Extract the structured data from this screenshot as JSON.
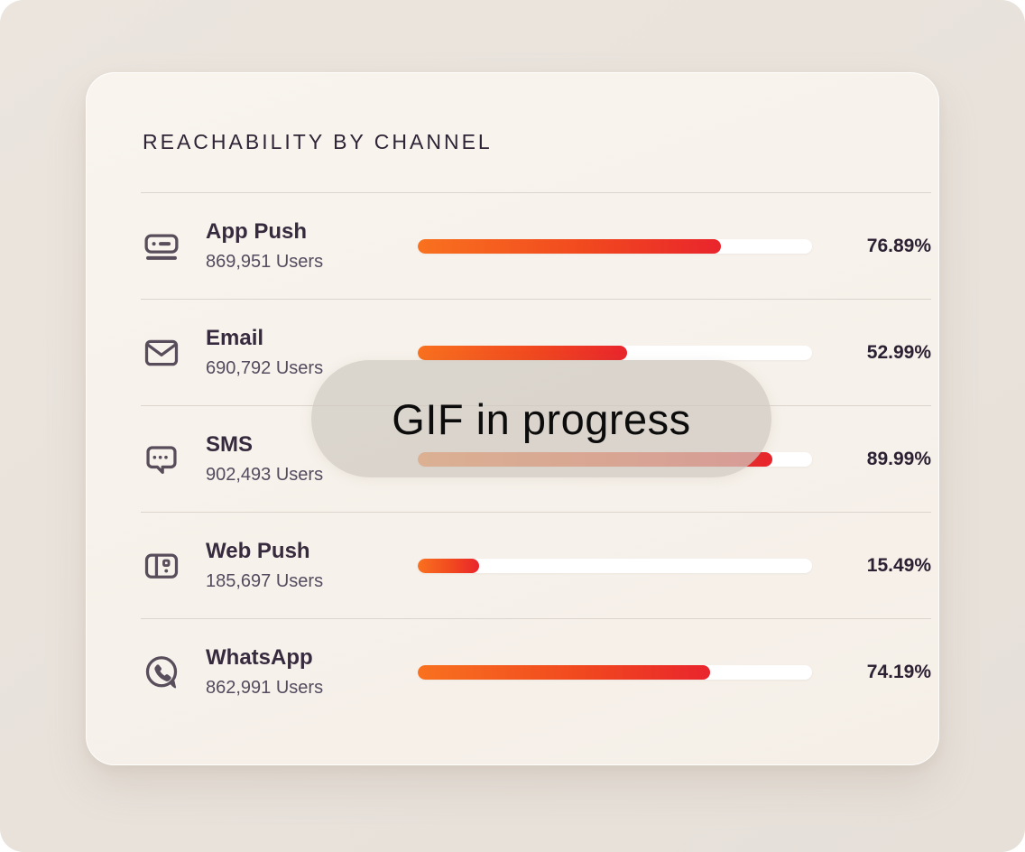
{
  "card": {
    "title": "REACHABILITY BY CHANNEL"
  },
  "overlay": {
    "label": "GIF in progress"
  },
  "colors": {
    "page_background": "#E9E3DC",
    "card_background": "#F7F2EB",
    "bar_track": "#FFFFFF",
    "bar_gradient_start": "#F9711F",
    "bar_gradient_end": "#E9252C",
    "title_text": "#2E2436",
    "icon_stroke": "#584D5A",
    "overlay_background": "rgba(207,201,193,0.72)"
  },
  "channels": [
    {
      "icon": "app-push-icon",
      "name": "App Push",
      "users": "869,951 Users",
      "percent": "76.89%",
      "value": 76.89
    },
    {
      "icon": "email-icon",
      "name": "Email",
      "users": "690,792 Users",
      "percent": "52.99%",
      "value": 52.99
    },
    {
      "icon": "sms-icon",
      "name": "SMS",
      "users": "902,493 Users",
      "percent": "89.99%",
      "value": 89.99
    },
    {
      "icon": "web-push-icon",
      "name": "Web Push",
      "users": "185,697 Users",
      "percent": "15.49%",
      "value": 15.49
    },
    {
      "icon": "whatsapp-icon",
      "name": "WhatsApp",
      "users": "862,991 Users",
      "percent": "74.19%",
      "value": 74.19
    }
  ],
  "chart_data": {
    "type": "bar",
    "orientation": "horizontal",
    "title": "REACHABILITY BY CHANNEL",
    "categories": [
      "App Push",
      "Email",
      "SMS",
      "Web Push",
      "WhatsApp"
    ],
    "values": [
      76.89,
      52.99,
      89.99,
      15.49,
      74.19
    ],
    "value_unit": "%",
    "xlim": [
      0,
      100
    ],
    "grid": false,
    "legend": "none"
  }
}
